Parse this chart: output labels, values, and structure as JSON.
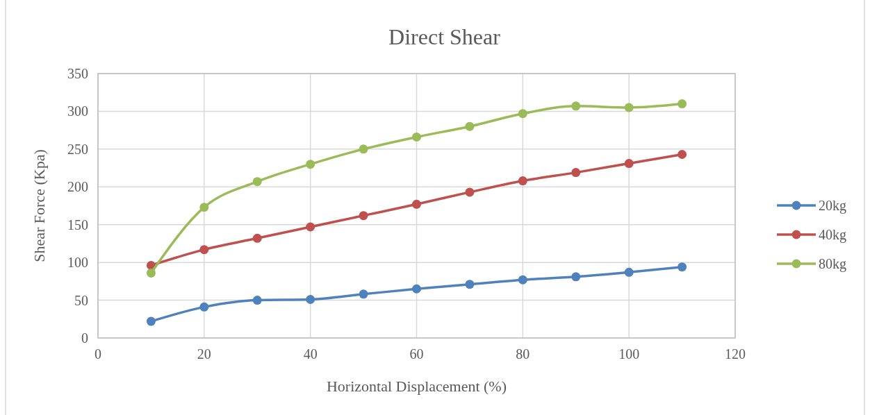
{
  "chart_data": {
    "type": "line",
    "title": "Direct Shear",
    "xlabel": "Horizontal Displacement (%)",
    "ylabel": "Shear Force (Kpa)",
    "x": [
      10,
      20,
      30,
      40,
      50,
      60,
      70,
      80,
      90,
      100,
      110
    ],
    "xlim": [
      0,
      120
    ],
    "xticks": [
      0,
      20,
      40,
      60,
      80,
      100,
      120
    ],
    "ylim": [
      0,
      350
    ],
    "yticks": [
      0,
      50,
      100,
      150,
      200,
      250,
      300,
      350
    ],
    "grid": true,
    "legend": "right",
    "marker": "circle",
    "line_style": "solid",
    "series": [
      {
        "name": "20kg",
        "color": "#4f81bd",
        "values": [
          22,
          41,
          50,
          51,
          58,
          65,
          71,
          77,
          81,
          87,
          94
        ]
      },
      {
        "name": "40kg",
        "color": "#c0504d",
        "values": [
          96,
          117,
          132,
          147,
          162,
          177,
          193,
          208,
          219,
          231,
          243
        ]
      },
      {
        "name": "80kg",
        "color": "#9bbb59",
        "values": [
          86,
          173,
          207,
          230,
          250,
          266,
          280,
          297,
          307,
          305,
          310
        ]
      }
    ]
  }
}
